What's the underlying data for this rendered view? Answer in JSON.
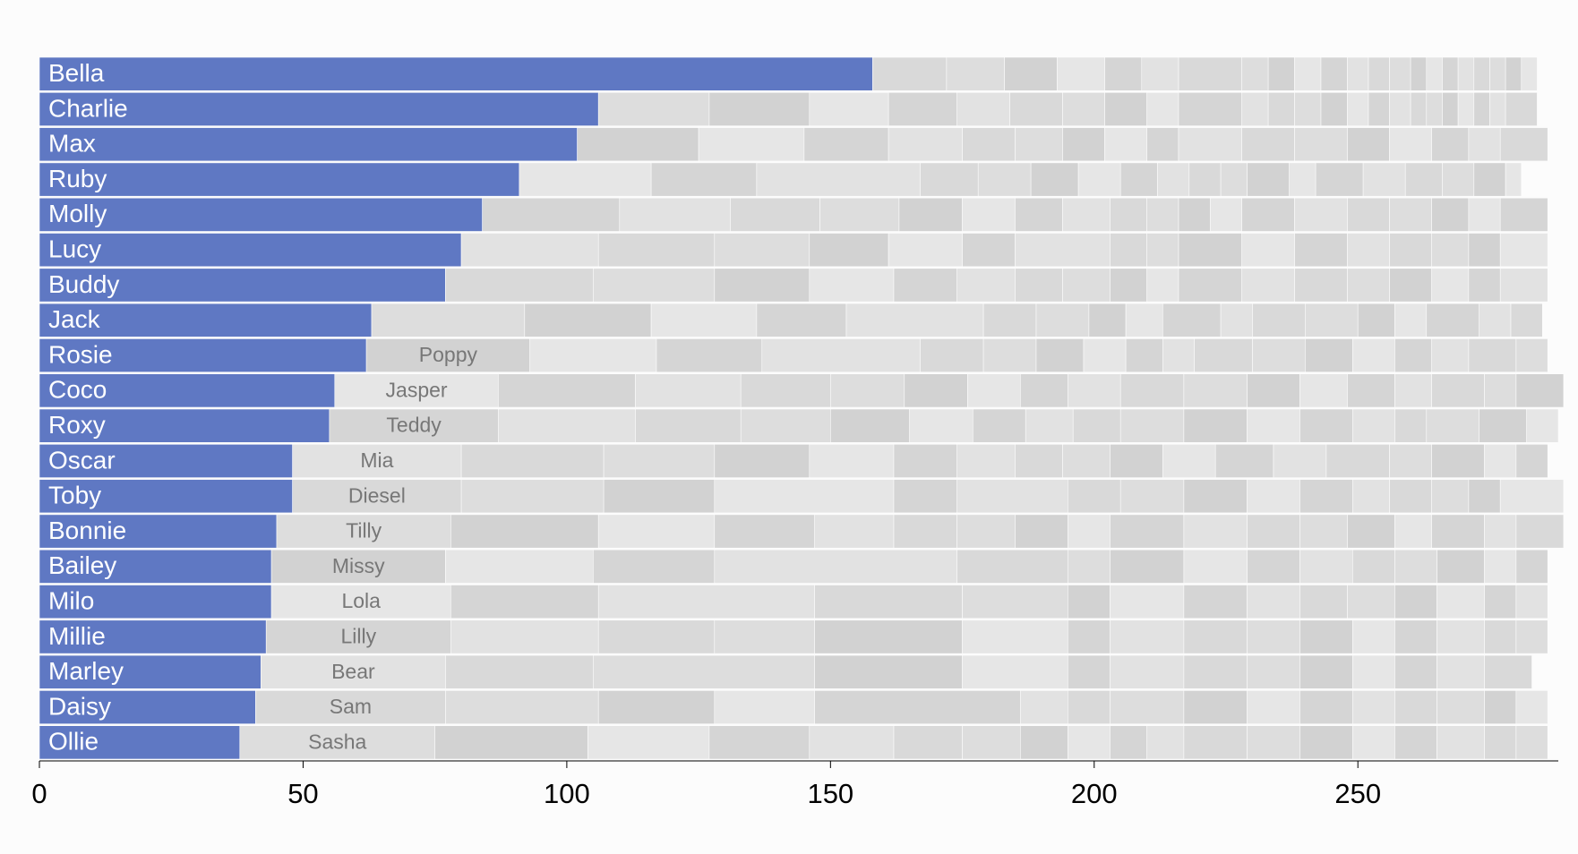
{
  "chart_data": {
    "type": "stacked-bar",
    "color": "#5f78c3",
    "palette": [
      "#e2e2e2",
      "#d9d9d9",
      "#dddddd",
      "#d2d2d2",
      "#e6e6e6",
      "#d5d5d5"
    ],
    "xlim": [
      0,
      288
    ],
    "xticks": [
      0,
      50,
      100,
      150,
      200,
      250
    ],
    "rows": [
      {
        "name": "Bella",
        "values": [
          158,
          14,
          11,
          10,
          9,
          7,
          7,
          12,
          5,
          5,
          5,
          5,
          4,
          4,
          4,
          3,
          3,
          3,
          3,
          3,
          3,
          3,
          3
        ]
      },
      {
        "name": "Charlie",
        "values": [
          106,
          21,
          19,
          15,
          13,
          10,
          10,
          8,
          8,
          6,
          12,
          5,
          5,
          5,
          5,
          4,
          4,
          4,
          3,
          3,
          3,
          3,
          3,
          3,
          6
        ]
      },
      {
        "name": "Max",
        "values": [
          102,
          23,
          20,
          16,
          14,
          10,
          9,
          8,
          8,
          6,
          12,
          10,
          10,
          8,
          8,
          7,
          6,
          9
        ]
      },
      {
        "name": "Ruby",
        "values": [
          91,
          25,
          20,
          31,
          11,
          10,
          9,
          8,
          7,
          6,
          6,
          5,
          8,
          5,
          9,
          8,
          7,
          6,
          6,
          3
        ]
      },
      {
        "name": "Molly",
        "values": [
          84,
          26,
          21,
          17,
          15,
          12,
          10,
          9,
          9,
          7,
          6,
          6,
          6,
          10,
          10,
          8,
          8,
          7,
          6,
          9
        ]
      },
      {
        "name": "Lucy",
        "values": [
          80,
          26,
          22,
          18,
          15,
          14,
          10,
          18,
          7,
          6,
          12,
          10,
          10,
          8,
          8,
          7,
          6,
          9
        ]
      },
      {
        "name": "Buddy",
        "values": [
          77,
          28,
          23,
          18,
          16,
          12,
          11,
          9,
          9,
          7,
          6,
          12,
          10,
          10,
          8,
          8,
          7,
          6,
          9
        ]
      },
      {
        "name": "Jack",
        "values": [
          63,
          29,
          24,
          20,
          17,
          26,
          10,
          10,
          7,
          7,
          11,
          6,
          10,
          10,
          7,
          6,
          10,
          6,
          6
        ]
      },
      {
        "name": "Rosie",
        "second": "Poppy",
        "values": [
          62,
          31,
          24,
          20,
          30,
          12,
          10,
          9,
          8,
          7,
          6,
          11,
          10,
          9,
          8,
          7,
          7,
          9,
          6
        ]
      },
      {
        "name": "Coco",
        "second": "Jasper",
        "values": [
          56,
          31,
          26,
          20,
          17,
          14,
          12,
          10,
          9,
          10,
          12,
          12,
          10,
          9,
          9,
          7,
          10,
          6,
          9
        ]
      },
      {
        "name": "Roxy",
        "second": "Teddy",
        "values": [
          55,
          32,
          26,
          20,
          17,
          15,
          12,
          10,
          9,
          9,
          12,
          12,
          10,
          10,
          8,
          6,
          10,
          9,
          6
        ]
      },
      {
        "name": "Oscar",
        "second": "Mia",
        "values": [
          48,
          32,
          27,
          21,
          18,
          16,
          12,
          11,
          9,
          9,
          10,
          10,
          11,
          10,
          12,
          8,
          10,
          6,
          6
        ]
      },
      {
        "name": "Toby",
        "second": "Diesel",
        "values": [
          48,
          32,
          27,
          21,
          34,
          12,
          21,
          10,
          12,
          12,
          10,
          10,
          7,
          8,
          7,
          6,
          12
        ]
      },
      {
        "name": "Bonnie",
        "second": "Tilly",
        "values": [
          45,
          33,
          28,
          22,
          19,
          15,
          12,
          11,
          10,
          8,
          14,
          12,
          10,
          9,
          9,
          7,
          10,
          6,
          9
        ]
      },
      {
        "name": "Bailey",
        "second": "Missy",
        "values": [
          44,
          33,
          28,
          23,
          46,
          21,
          8,
          14,
          12,
          10,
          10,
          8,
          8,
          9,
          6,
          6
        ]
      },
      {
        "name": "Milo",
        "second": "Lola",
        "values": [
          44,
          34,
          28,
          41,
          28,
          20,
          8,
          14,
          12,
          10,
          9,
          9,
          8,
          9,
          6,
          6
        ]
      },
      {
        "name": "Millie",
        "second": "Lilly",
        "values": [
          43,
          35,
          28,
          22,
          19,
          28,
          20,
          8,
          14,
          12,
          10,
          10,
          8,
          8,
          9,
          6,
          6
        ]
      },
      {
        "name": "Marley",
        "second": "Bear",
        "values": [
          42,
          35,
          28,
          42,
          28,
          20,
          8,
          14,
          12,
          10,
          10,
          8,
          8,
          9,
          9
        ]
      },
      {
        "name": "Daisy",
        "second": "Sam",
        "values": [
          41,
          36,
          29,
          22,
          19,
          39,
          9,
          8,
          14,
          12,
          10,
          10,
          8,
          8,
          9,
          6,
          6
        ]
      },
      {
        "name": "Ollie",
        "second": "Sasha",
        "values": [
          38,
          37,
          29,
          23,
          19,
          16,
          13,
          11,
          9,
          8,
          7,
          7,
          12,
          10,
          10,
          8,
          8,
          9,
          6,
          6
        ]
      }
    ]
  }
}
